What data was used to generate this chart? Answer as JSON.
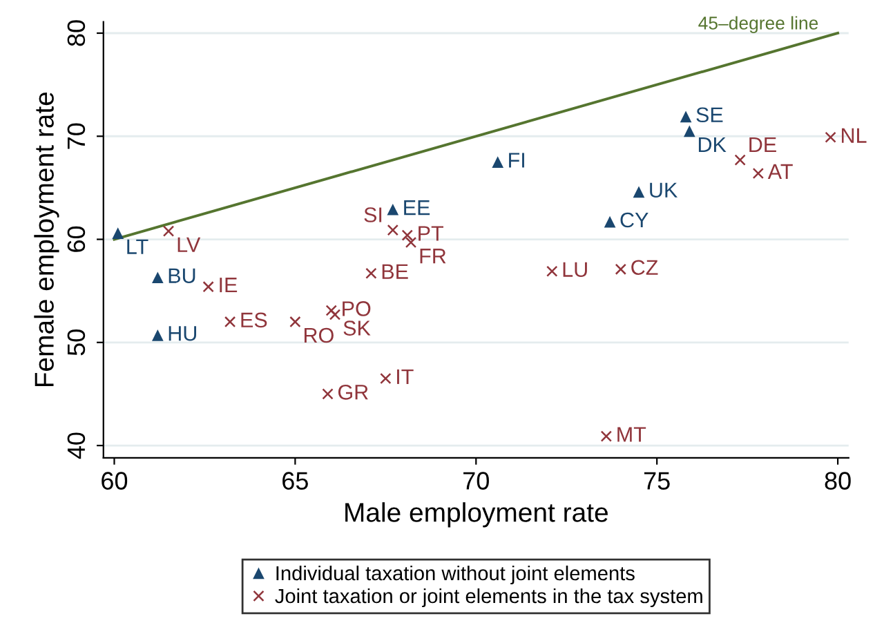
{
  "chart_data": {
    "type": "scatter",
    "xlabel": "Male employment rate",
    "ylabel": "Female employment rate",
    "xlim": [
      59.7,
      80.3
    ],
    "ylim": [
      38.8,
      81.1
    ],
    "xticks": [
      60,
      65,
      70,
      75,
      80
    ],
    "yticks": [
      40,
      50,
      60,
      70,
      80
    ],
    "grid": "y",
    "legend": "bottom",
    "series": [
      {
        "name": "Individual taxation without joint elements",
        "color": "#1a476f",
        "marker": "triangle",
        "x": [
          60.1,
          61.2,
          61.2,
          67.7,
          70.6,
          73.7,
          74.5,
          75.8,
          75.9
        ],
        "values": [
          60.6,
          56.3,
          50.7,
          62.9,
          67.5,
          61.7,
          64.6,
          71.9,
          70.5
        ]
      },
      {
        "name": "Joint taxation or joint elements in the tax system",
        "color": "#90353b",
        "marker": "cross",
        "x": [
          61.5,
          62.6,
          63.2,
          65.0,
          66.0,
          66.1,
          65.9,
          67.5,
          67.1,
          67.7,
          68.1,
          68.2,
          72.1,
          74.0,
          73.6,
          77.3,
          77.8,
          79.8
        ],
        "values": [
          60.8,
          55.4,
          52.0,
          52.0,
          53.1,
          52.7,
          45.0,
          46.5,
          56.7,
          60.9,
          60.4,
          59.7,
          56.9,
          57.1,
          40.9,
          67.7,
          66.4,
          69.9
        ]
      },
      {
        "name": "45–degree line",
        "type": "line",
        "color": "#55752f",
        "x": [
          60,
          80
        ],
        "values": [
          60,
          80
        ]
      }
    ],
    "annotations": [
      {
        "text": "LT",
        "x": 60.1,
        "y": 60.6
      },
      {
        "text": "BU",
        "x": 61.2,
        "y": 56.3
      },
      {
        "text": "HU",
        "x": 61.2,
        "y": 50.7
      },
      {
        "text": "EE",
        "x": 67.7,
        "y": 62.9
      },
      {
        "text": "FI",
        "x": 70.6,
        "y": 67.5
      },
      {
        "text": "CY",
        "x": 73.7,
        "y": 61.7
      },
      {
        "text": "UK",
        "x": 74.5,
        "y": 64.6
      },
      {
        "text": "SE",
        "x": 75.8,
        "y": 71.9
      },
      {
        "text": "DK",
        "x": 75.9,
        "y": 70.5
      },
      {
        "text": "LV",
        "x": 61.5,
        "y": 60.8
      },
      {
        "text": "IE",
        "x": 62.6,
        "y": 55.4
      },
      {
        "text": "ES",
        "x": 63.2,
        "y": 52.0
      },
      {
        "text": "RO",
        "x": 65.0,
        "y": 52.0
      },
      {
        "text": "PO",
        "x": 66.0,
        "y": 53.1
      },
      {
        "text": "SK",
        "x": 66.1,
        "y": 52.7
      },
      {
        "text": "GR",
        "x": 65.9,
        "y": 45.0
      },
      {
        "text": "IT",
        "x": 67.5,
        "y": 46.5
      },
      {
        "text": "BE",
        "x": 67.1,
        "y": 56.7
      },
      {
        "text": "SI",
        "x": 67.7,
        "y": 60.9
      },
      {
        "text": "PT",
        "x": 68.1,
        "y": 60.4
      },
      {
        "text": "FR",
        "x": 68.2,
        "y": 59.7
      },
      {
        "text": "LU",
        "x": 72.1,
        "y": 56.9
      },
      {
        "text": "CZ",
        "x": 74.0,
        "y": 57.1
      },
      {
        "text": "MT",
        "x": 73.6,
        "y": 40.9
      },
      {
        "text": "DE",
        "x": 77.3,
        "y": 67.7
      },
      {
        "text": "AT",
        "x": 77.8,
        "y": 66.4
      },
      {
        "text": "NL",
        "x": 79.8,
        "y": 69.9
      }
    ]
  }
}
